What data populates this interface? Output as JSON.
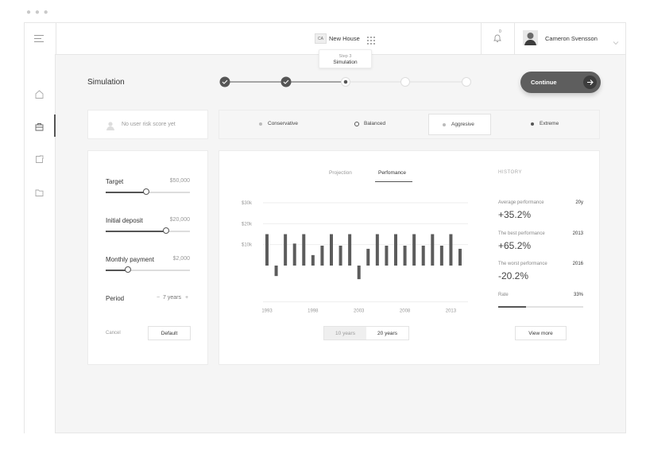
{
  "header": {
    "project_badge": "CA",
    "project_name": "New House",
    "user_name": "Cameron Svensson",
    "notification_count": "0"
  },
  "steps": {
    "tooltip_step": "Step 3",
    "tooltip_title": "Simulation"
  },
  "page": {
    "title": "Simulation",
    "continue_label": "Continue"
  },
  "risk": {
    "placeholder": "No user risk score yet",
    "options": [
      "Conservative",
      "Balanced",
      "Aggresive",
      "Extreme"
    ],
    "selected": "Aggresive"
  },
  "params": {
    "target_label": "Target",
    "target_value": "$50,000",
    "target_level": 0.48,
    "deposit_label": "Initial deposit",
    "deposit_value": "$20,000",
    "deposit_level": 0.72,
    "monthly_label": "Monthly payment",
    "monthly_value": "$2,000",
    "monthly_level": 0.26,
    "period_label": "Period",
    "period_value": "7 years",
    "period_minus": "−",
    "period_plus": "+",
    "cancel_label": "Cancel",
    "default_label": "Default"
  },
  "tabs": {
    "projection": "Projection",
    "performance": "Perfomance",
    "active": "Perfomance"
  },
  "range": {
    "ten": "10 years",
    "twenty": "20 years",
    "active": "20 years"
  },
  "history": {
    "title": "HISTORY",
    "avg_label": "Average performance",
    "avg_tag": "20y",
    "avg_value": "+35.2%",
    "best_label": "The best performance",
    "best_tag": "2013",
    "best_value": "+65.2%",
    "worst_label": "The worst performance",
    "worst_tag": "2016",
    "worst_value": "-20.2%",
    "rate_label": "Rate",
    "rate_value": "33%",
    "rate_level": 0.33,
    "view_more": "View more"
  },
  "chart_data": {
    "type": "bar",
    "x": [
      1993,
      1994,
      1995,
      1996,
      1997,
      1998,
      1999,
      2000,
      2001,
      2002,
      2003,
      2004,
      2005,
      2006,
      2007,
      2008,
      2009,
      2010,
      2011,
      2012,
      2013,
      2014
    ],
    "values": [
      15,
      -5,
      15,
      10.5,
      15,
      5,
      9.5,
      15,
      9.5,
      15,
      -6.5,
      8,
      15,
      9.5,
      15,
      9.5,
      15,
      9.5,
      15,
      9.5,
      15,
      8
    ],
    "ytick_labels": [
      "$30k",
      "$20k",
      "$10k"
    ],
    "yticks": [
      30,
      20,
      10
    ],
    "xtick_labels": [
      "1993",
      "1998",
      "2003",
      "2008",
      "2013"
    ],
    "xticks": [
      1993,
      1998,
      2003,
      2008,
      2013
    ],
    "ylim": [
      -12,
      30
    ],
    "xlim": [
      1993,
      2014
    ],
    "grid": true,
    "bar_color": "#5c5c5c"
  },
  "colors": {
    "accent": "#555555",
    "continue_bg": "#5e5e5e",
    "line": "#e6e6e6"
  },
  "icons": [
    "menu-icon",
    "apps-grid-icon",
    "bell-icon",
    "chevron-down-icon",
    "home-icon",
    "briefcase-icon",
    "export-icon",
    "folder-icon",
    "user-icon",
    "arrow-right-icon",
    "check-icon"
  ]
}
